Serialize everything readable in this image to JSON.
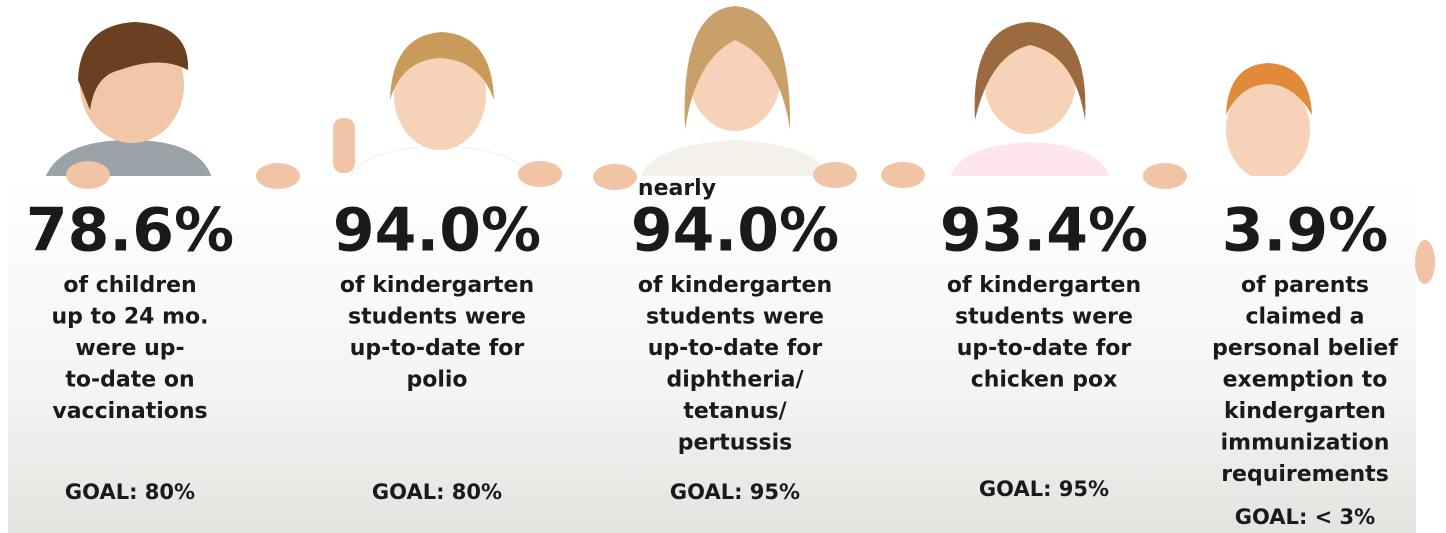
{
  "panels": [
    {
      "stat": "78.6%",
      "description": [
        "of children",
        "up to 24 mo.",
        "were up-",
        "to-date on",
        "vaccinations"
      ],
      "goal": "GOAL: 80%"
    },
    {
      "stat": "94.0%",
      "description": [
        "of kindergarten",
        "students were",
        "up-to-date for",
        "polio"
      ],
      "goal": "GOAL: 80%"
    },
    {
      "prefix": "nearly",
      "stat": "94.0%",
      "description": [
        "of kindergarten",
        "students were",
        "up-to-date for",
        "diphtheria/",
        "tetanus/",
        "pertussis"
      ],
      "goal": "GOAL: 95%"
    },
    {
      "stat": "93.4%",
      "description": [
        "of kindergarten",
        "students were",
        "up-to-date for",
        "chicken pox"
      ],
      "goal": "GOAL: 95%"
    },
    {
      "stat": "3.9%",
      "description": [
        "of parents",
        "claimed a",
        "personal belief",
        "exemption to",
        "kindergarten",
        "immunization",
        "requirements"
      ],
      "goal": "GOAL: < 3%"
    }
  ]
}
